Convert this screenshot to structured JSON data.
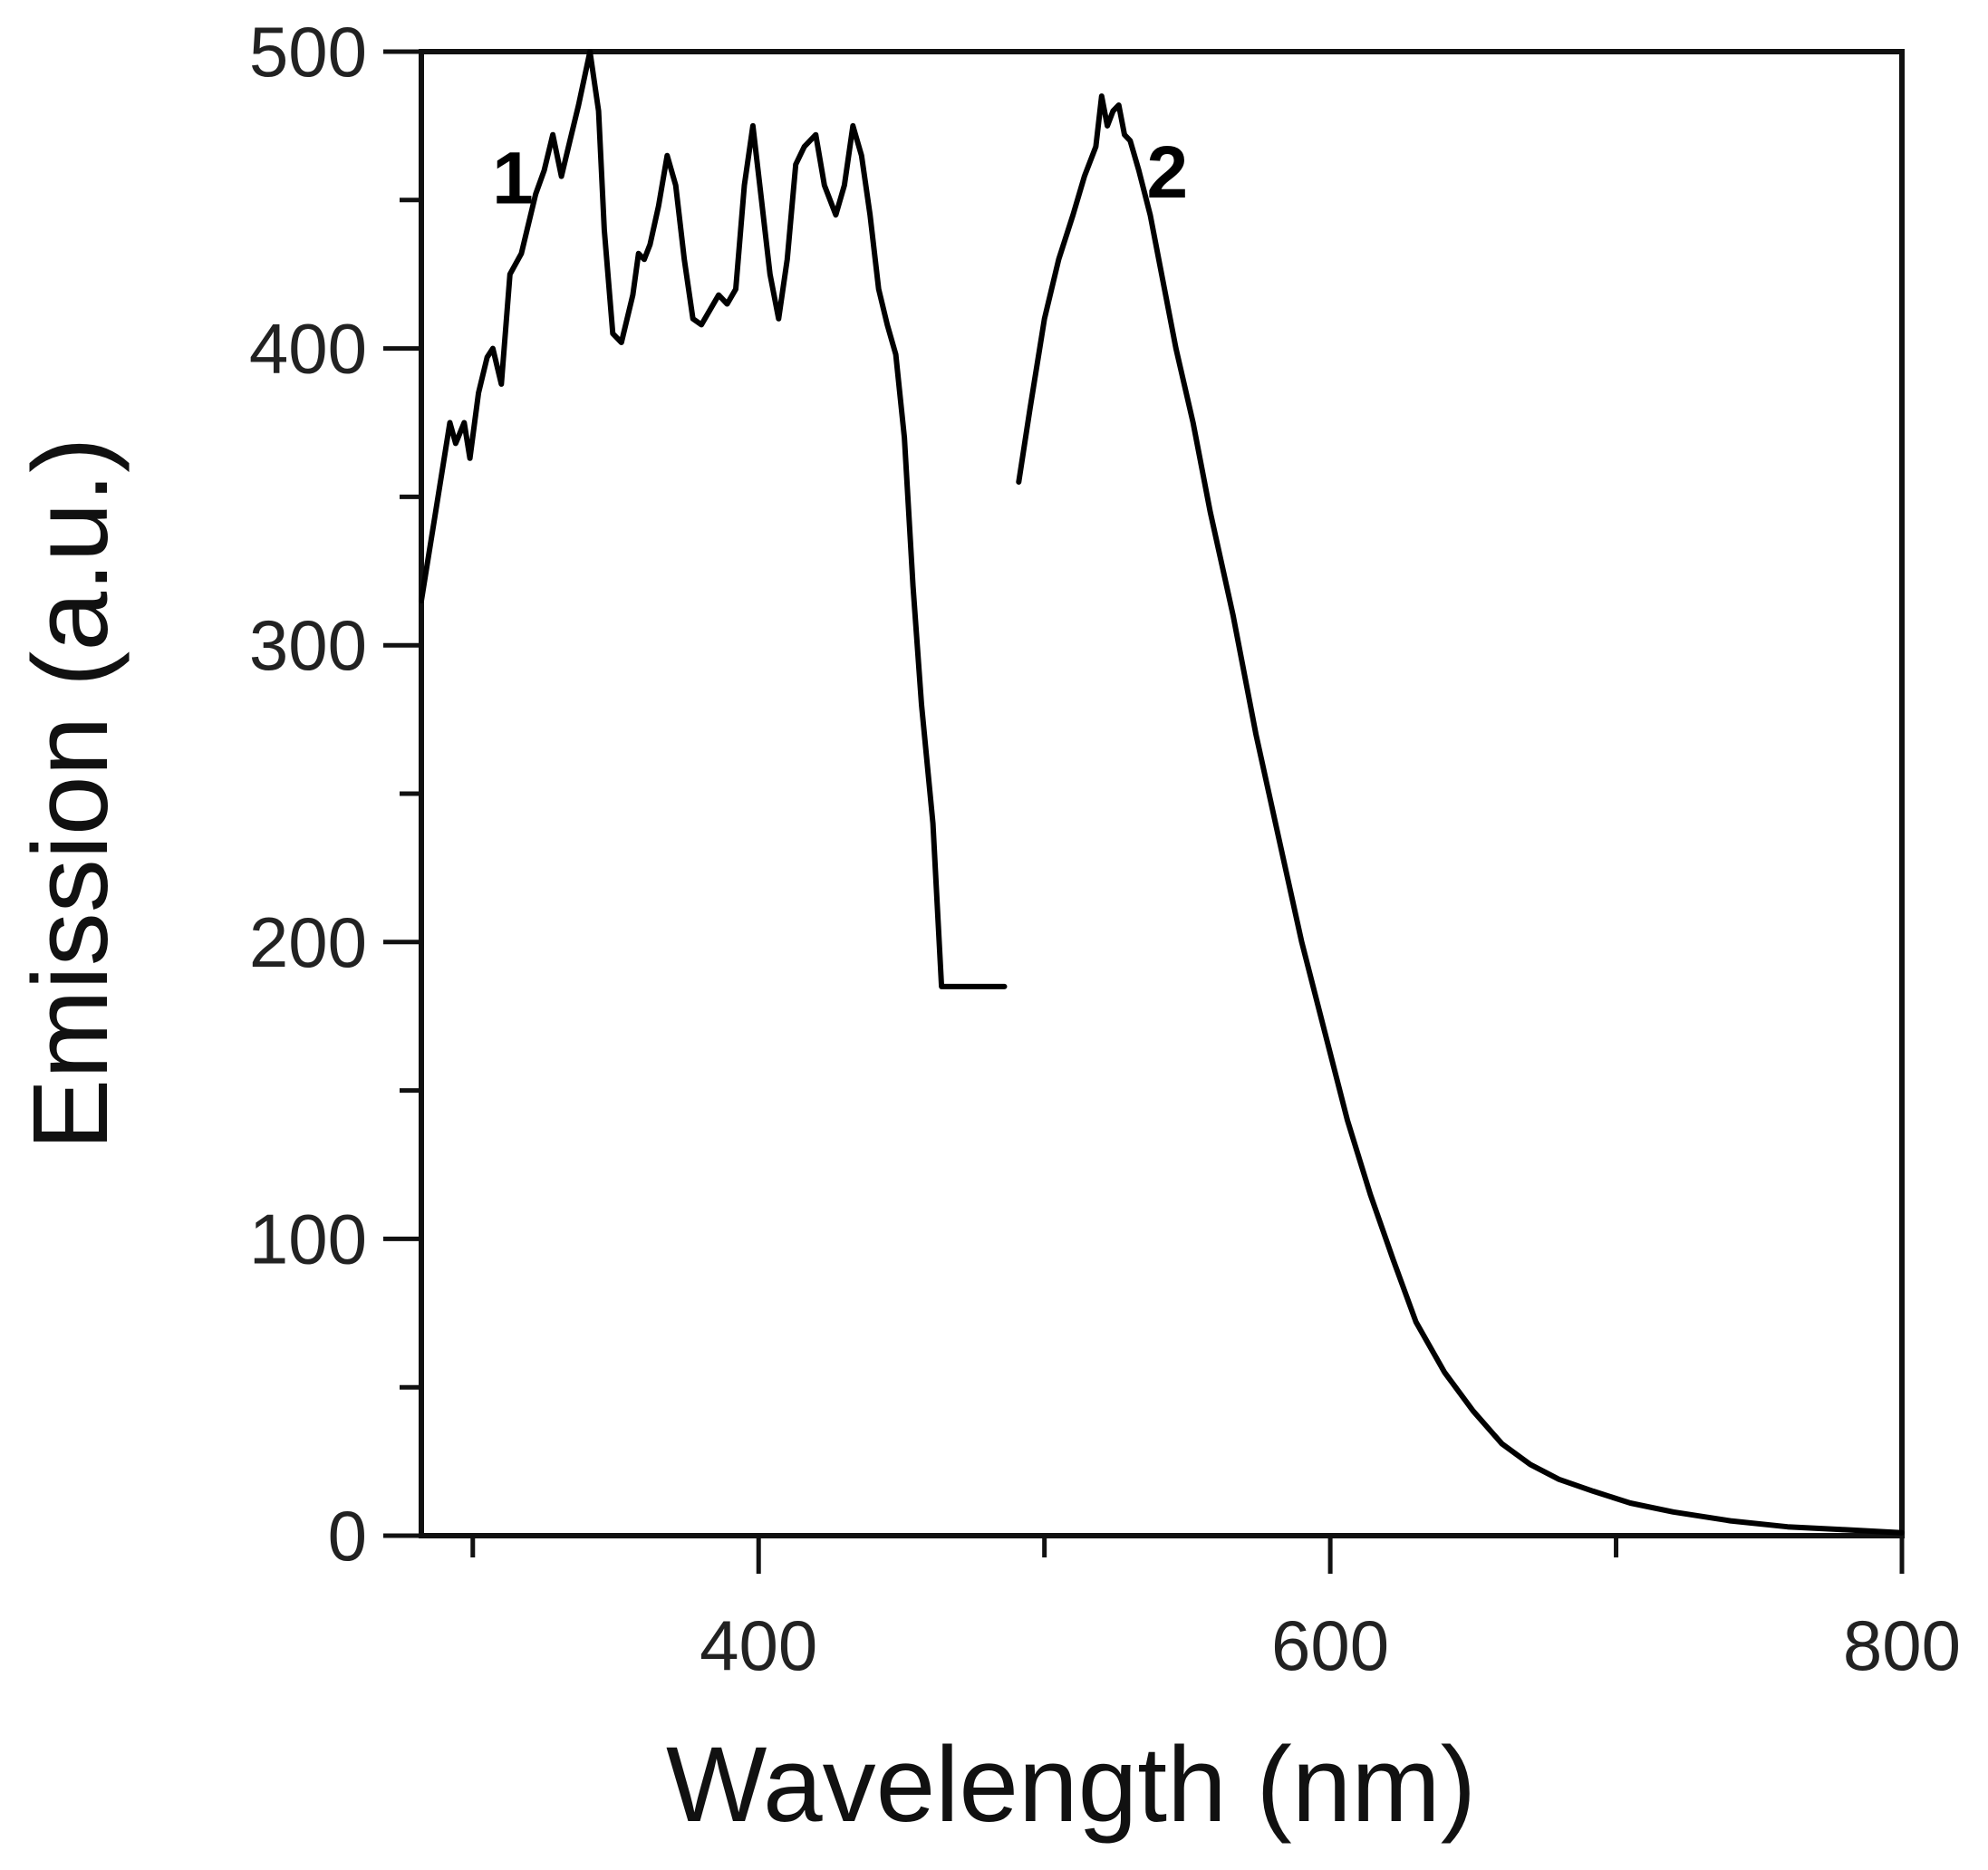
{
  "chart_data": {
    "type": "line",
    "title": "",
    "xlabel": "Wavelength (nm)",
    "ylabel": "Emission (a.u.)",
    "xlim": [
      282,
      800
    ],
    "ylim": [
      0,
      500
    ],
    "xticks": [
      400,
      600,
      800
    ],
    "xtick_labels": [
      "400",
      "600",
      "800"
    ],
    "x_minor_ticks": [
      300,
      500,
      700
    ],
    "yticks": [
      0,
      100,
      200,
      300,
      400,
      500
    ],
    "ytick_labels": [
      "0",
      "100",
      "200",
      "300",
      "400",
      "500"
    ],
    "y_minor_ticks": [
      50,
      150,
      250,
      350,
      450
    ],
    "grid": false,
    "legend": "none",
    "series": [
      {
        "name": "1",
        "label_at": [
          314,
          458
        ],
        "x": [
          282,
          287,
          292,
          294,
          297,
          299,
          302,
          305,
          307,
          310,
          313,
          317,
          319,
          322,
          325,
          328,
          331,
          334,
          337,
          341,
          344,
          346,
          349,
          352,
          354,
          356,
          358,
          360,
          362,
          365,
          368,
          371,
          374,
          377,
          380,
          383,
          386,
          389,
          392,
          395,
          398,
          401,
          404,
          407,
          410,
          413,
          416,
          420,
          423,
          425,
          427,
          430,
          433,
          436,
          439,
          442,
          445,
          448,
          451,
          454,
          457,
          461,
          464,
          468,
          471,
          474,
          477,
          480,
          483,
          486
        ],
        "y": [
          315,
          345,
          375,
          368,
          375,
          363,
          385,
          397,
          400,
          388,
          425,
          432,
          440,
          452,
          460,
          472,
          458,
          470,
          482,
          500,
          480,
          440,
          405,
          402,
          410,
          418,
          432,
          430,
          435,
          448,
          465,
          455,
          430,
          410,
          408,
          413,
          418,
          415,
          420,
          455,
          475,
          450,
          425,
          410,
          430,
          462,
          468,
          472,
          455,
          450,
          445,
          455,
          475,
          465,
          445,
          420,
          408,
          398,
          370,
          320,
          280,
          240,
          185,
          185,
          185,
          185,
          185,
          185,
          185,
          185
        ]
      },
      {
        "name": "2",
        "label_at": [
          543,
          460
        ],
        "x": [
          491,
          495,
          500,
          505,
          510,
          514,
          518,
          520,
          522,
          524,
          526,
          528,
          530,
          533,
          537,
          541,
          546,
          552,
          558,
          566,
          574,
          582,
          590,
          598,
          606,
          614,
          622,
          630,
          640,
          650,
          660,
          670,
          680,
          692,
          705,
          720,
          740,
          760,
          780,
          800
        ],
        "y": [
          355,
          380,
          410,
          430,
          445,
          458,
          468,
          485,
          475,
          480,
          482,
          472,
          470,
          460,
          445,
          425,
          400,
          375,
          345,
          310,
          270,
          235,
          200,
          170,
          140,
          115,
          93,
          72,
          55,
          42,
          31,
          24,
          19,
          15,
          11,
          8,
          5,
          3,
          2,
          1
        ]
      }
    ]
  }
}
